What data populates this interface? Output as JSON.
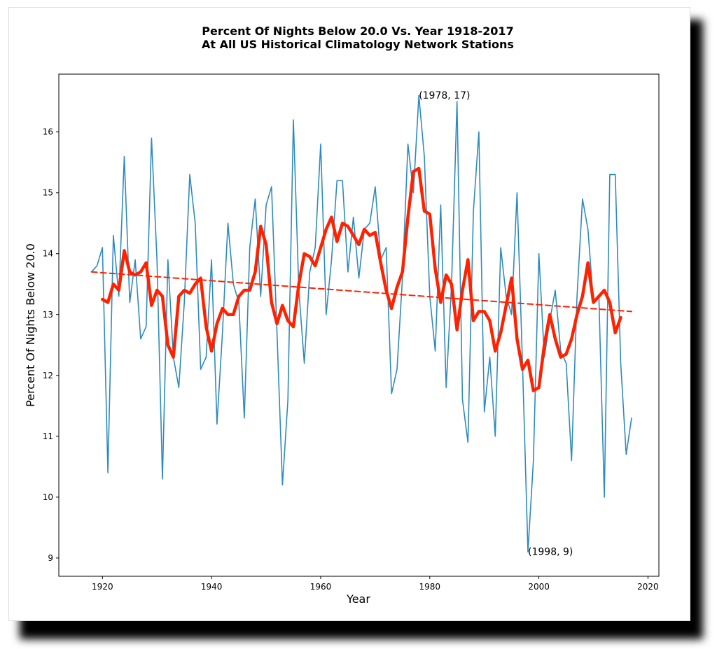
{
  "chart_data": {
    "type": "line",
    "title": "Percent Of Nights Below 20.0 Vs. Year 1918-2017",
    "subtitle": "At All US Historical Climatology Network Stations",
    "xlabel": "Year",
    "ylabel": "Percent Of Nights Below 20.0",
    "xlim": [
      1912,
      2022
    ],
    "ylim": [
      8.7,
      16.95
    ],
    "xticks": [
      1920,
      1940,
      1960,
      1980,
      2000,
      2020
    ],
    "yticks": [
      9,
      10,
      11,
      12,
      13,
      14,
      15,
      16
    ],
    "grid": false,
    "colors": {
      "annual": "#2e8bc0",
      "smooth": "#ff2200",
      "trend": "#ff2200"
    },
    "series": [
      {
        "style": "thin-blue",
        "x": [
          1918,
          1919,
          1920,
          1921,
          1922,
          1923,
          1924,
          1925,
          1926,
          1927,
          1928,
          1929,
          1930,
          1931,
          1932,
          1933,
          1934,
          1935,
          1936,
          1937,
          1938,
          1939,
          1940,
          1941,
          1942,
          1943,
          1944,
          1945,
          1946,
          1947,
          1948,
          1949,
          1950,
          1951,
          1952,
          1953,
          1954,
          1955,
          1956,
          1957,
          1958,
          1959,
          1960,
          1961,
          1962,
          1963,
          1964,
          1965,
          1966,
          1967,
          1968,
          1969,
          1970,
          1971,
          1972,
          1973,
          1974,
          1975,
          1976,
          1977,
          1978,
          1979,
          1980,
          1981,
          1982,
          1983,
          1984,
          1985,
          1986,
          1987,
          1988,
          1989,
          1990,
          1991,
          1992,
          1993,
          1994,
          1995,
          1996,
          1997,
          1998,
          1999,
          2000,
          2001,
          2002,
          2003,
          2004,
          2005,
          2006,
          2007,
          2008,
          2009,
          2010,
          2011,
          2012,
          2013,
          2014,
          2015,
          2016,
          2017
        ],
        "values": [
          13.7,
          13.8,
          14.1,
          10.4,
          14.3,
          13.3,
          15.6,
          13.2,
          13.9,
          12.6,
          12.8,
          15.9,
          13.9,
          10.3,
          13.9,
          12.3,
          11.8,
          13.2,
          15.3,
          14.5,
          12.1,
          12.3,
          13.9,
          11.2,
          12.7,
          14.5,
          13.5,
          13.2,
          11.3,
          14.1,
          14.9,
          13.3,
          14.8,
          15.1,
          12.7,
          10.2,
          11.6,
          16.2,
          13.4,
          12.2,
          13.7,
          14.1,
          15.8,
          13.0,
          13.9,
          15.2,
          15.2,
          13.7,
          14.6,
          13.6,
          14.4,
          14.5,
          15.1,
          13.9,
          14.1,
          11.7,
          12.1,
          13.6,
          15.8,
          15.0,
          16.6,
          15.6,
          13.3,
          12.4,
          14.8,
          11.8,
          13.5,
          16.5,
          11.6,
          10.9,
          14.7,
          16.0,
          11.4,
          12.3,
          11.0,
          14.1,
          13.3,
          13.0,
          15.0,
          12.2,
          9.1,
          10.6,
          14.0,
          12.3,
          12.9,
          13.4,
          12.4,
          12.2,
          10.6,
          13.3,
          14.9,
          14.4,
          13.2,
          13.3,
          10.0,
          15.3,
          15.3,
          12.2,
          10.7,
          11.3
        ]
      },
      {
        "style": "thick-red",
        "x": [
          1920,
          1921,
          1922,
          1923,
          1924,
          1925,
          1926,
          1927,
          1928,
          1929,
          1930,
          1931,
          1932,
          1933,
          1934,
          1935,
          1936,
          1937,
          1938,
          1939,
          1940,
          1941,
          1942,
          1943,
          1944,
          1945,
          1946,
          1947,
          1948,
          1949,
          1950,
          1951,
          1952,
          1953,
          1954,
          1955,
          1956,
          1957,
          1958,
          1959,
          1960,
          1961,
          1962,
          1963,
          1964,
          1965,
          1966,
          1967,
          1968,
          1969,
          1970,
          1971,
          1972,
          1973,
          1974,
          1975,
          1976,
          1977,
          1978,
          1979,
          1980,
          1981,
          1982,
          1983,
          1984,
          1985,
          1986,
          1987,
          1988,
          1989,
          1990,
          1991,
          1992,
          1993,
          1994,
          1995,
          1996,
          1997,
          1998,
          1999,
          2000,
          2001,
          2002,
          2003,
          2004,
          2005,
          2006,
          2007,
          2008,
          2009,
          2010,
          2011,
          2012,
          2013,
          2014,
          2015
        ],
        "values": [
          13.25,
          13.2,
          13.5,
          13.4,
          14.05,
          13.7,
          13.65,
          13.7,
          13.85,
          13.15,
          13.4,
          13.3,
          12.5,
          12.3,
          13.3,
          13.4,
          13.35,
          13.5,
          13.6,
          12.8,
          12.4,
          12.85,
          13.1,
          13.0,
          13.0,
          13.3,
          13.4,
          13.4,
          13.7,
          14.45,
          14.15,
          13.2,
          12.85,
          13.15,
          12.9,
          12.8,
          13.5,
          14.0,
          13.95,
          13.8,
          14.1,
          14.4,
          14.6,
          14.2,
          14.5,
          14.45,
          14.3,
          14.15,
          14.4,
          14.3,
          14.35,
          13.85,
          13.4,
          13.1,
          13.45,
          13.7,
          14.6,
          15.35,
          15.4,
          14.7,
          14.65,
          13.75,
          13.2,
          13.65,
          13.5,
          12.75,
          13.4,
          13.9,
          12.9,
          13.05,
          13.05,
          12.9,
          12.4,
          12.7,
          13.15,
          13.6,
          12.6,
          12.1,
          12.25,
          11.75,
          11.8,
          12.5,
          13.0,
          12.6,
          12.3,
          12.35,
          12.6,
          13.0,
          13.3,
          13.85,
          13.2,
          13.3,
          13.4,
          13.2,
          12.7,
          12.95
        ]
      },
      {
        "style": "dashed-red",
        "x": [
          1918,
          2017
        ],
        "values": [
          13.7,
          13.05
        ]
      }
    ],
    "annotations": [
      {
        "text": "(1978, 17)",
        "x": 1978,
        "y": 16.55
      },
      {
        "text": "(1998, 9)",
        "x": 1998,
        "y": 9.05
      }
    ]
  }
}
